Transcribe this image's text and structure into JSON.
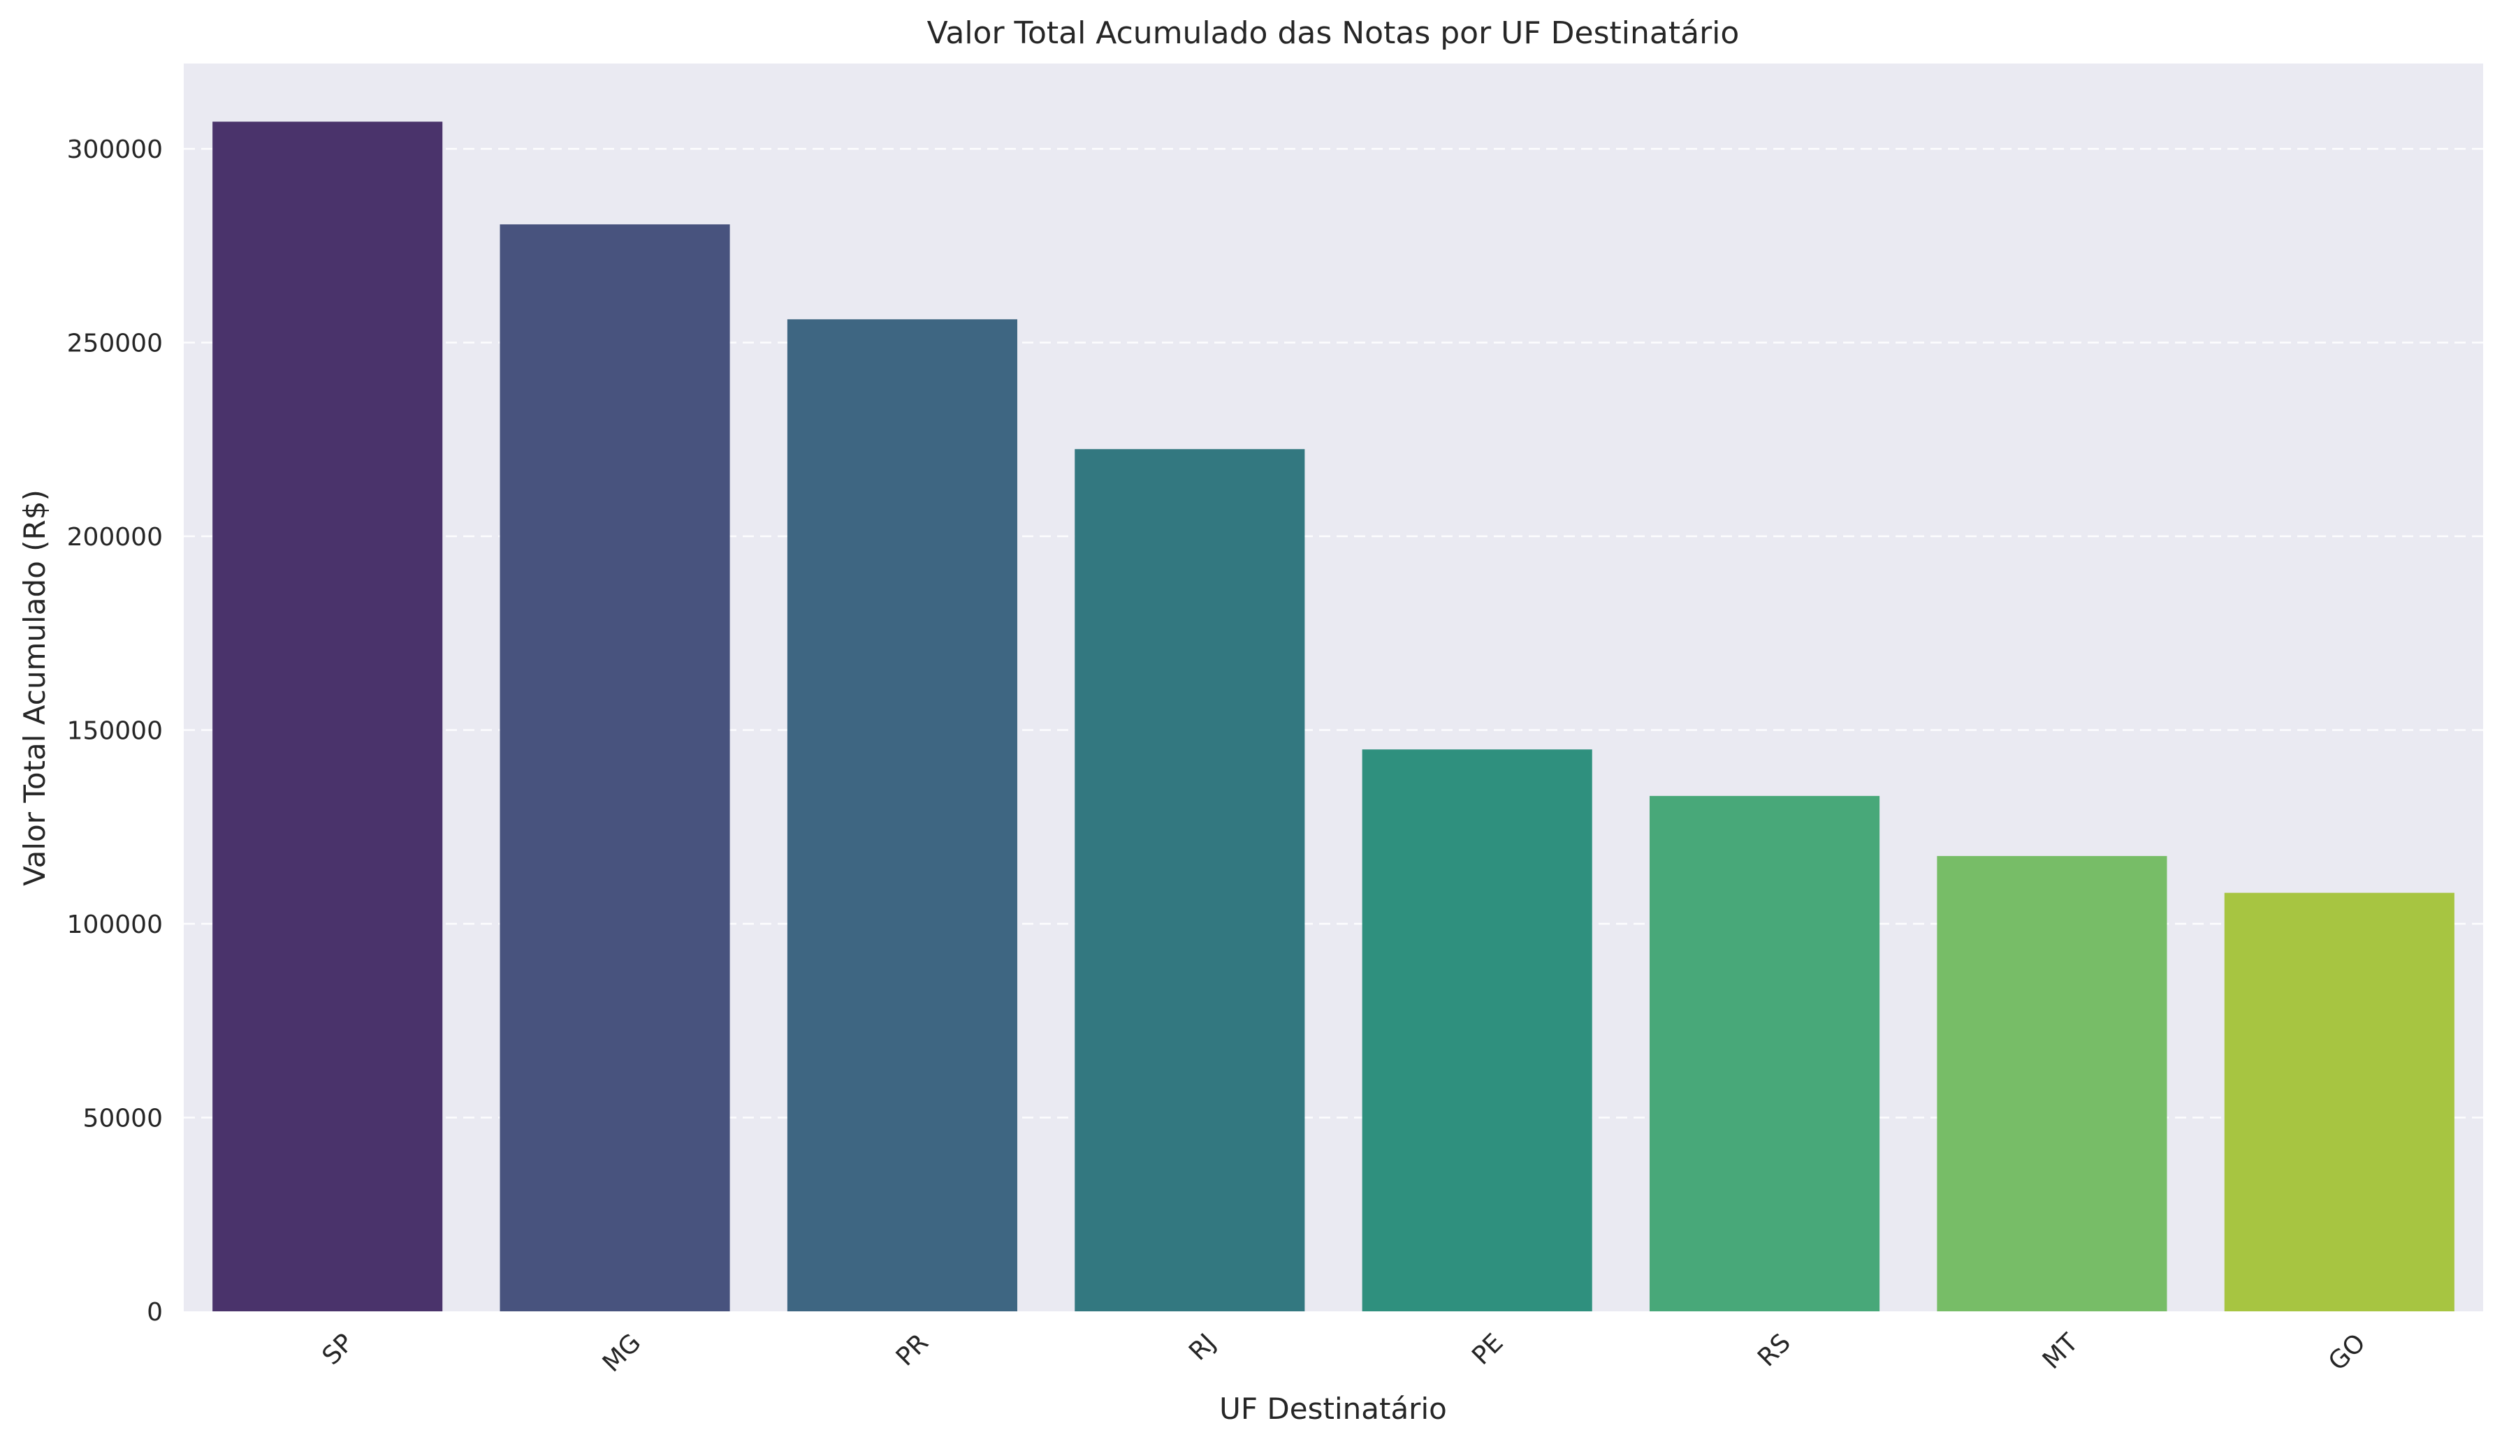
{
  "chart_data": {
    "type": "bar",
    "title": "Valor Total Acumulado das Notas por UF Destinatário",
    "xlabel": "UF Destinatário",
    "ylabel": "Valor Total Acumulado (R$)",
    "categories": [
      "SP",
      "MG",
      "PR",
      "RJ",
      "PE",
      "RS",
      "MT",
      "GO"
    ],
    "values": [
      307000,
      280500,
      256000,
      222500,
      145000,
      133000,
      117500,
      108000
    ],
    "colors": [
      "#4a336b",
      "#48537e",
      "#3e6682",
      "#337880",
      "#2f907e",
      "#48a879",
      "#77bd67",
      "#a7c541"
    ],
    "ylim": [
      0,
      322000
    ],
    "yticks": [
      0,
      50000,
      100000,
      150000,
      200000,
      250000,
      300000
    ],
    "ytick_labels": [
      "0",
      "50000",
      "100000",
      "150000",
      "200000",
      "250000",
      "300000"
    ],
    "grid": "y-dashed",
    "background": "#eaeaf2"
  }
}
